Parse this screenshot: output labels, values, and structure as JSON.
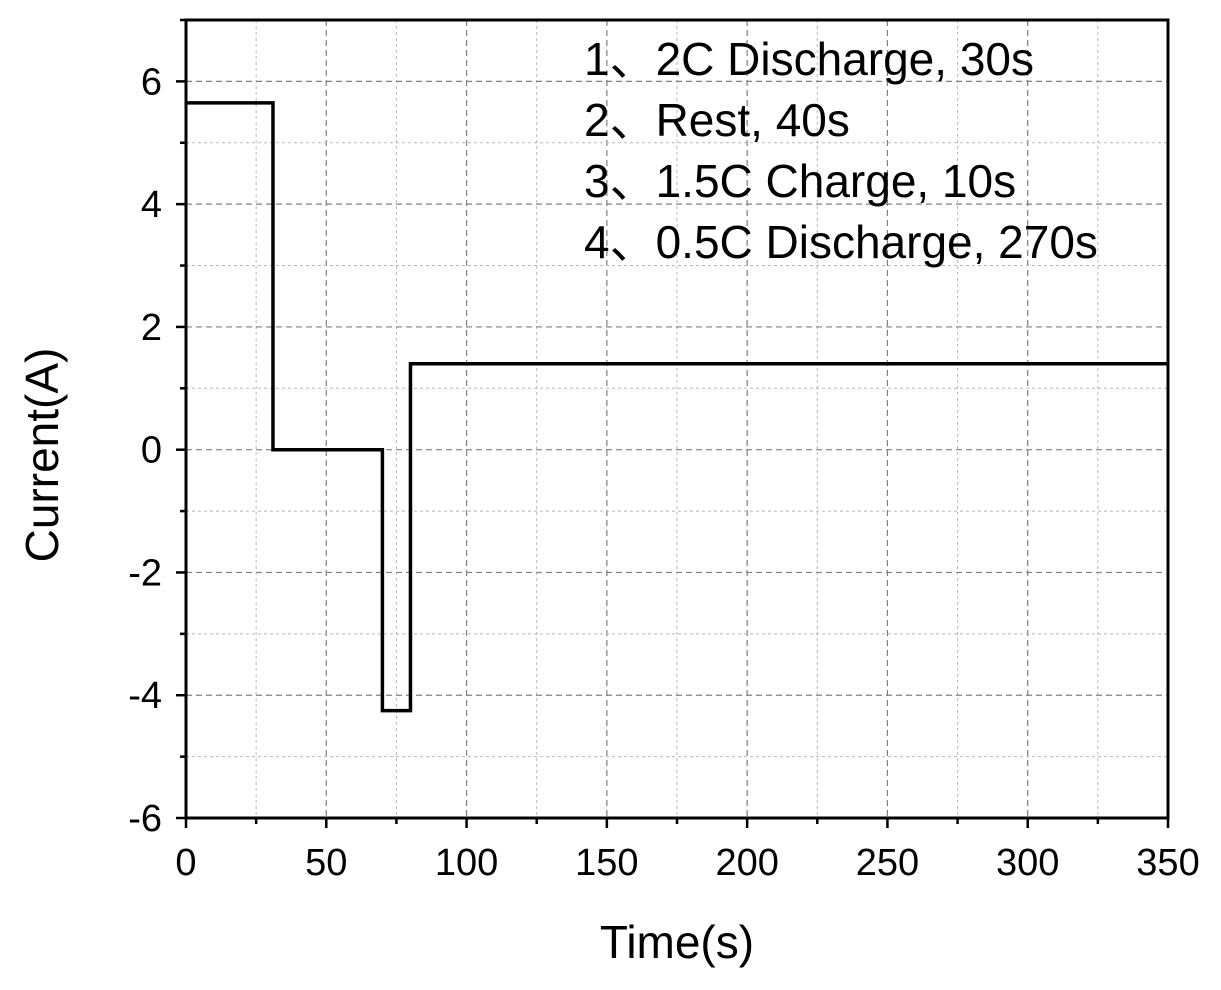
{
  "chart_data": {
    "type": "line",
    "xlabel": "Time(s)",
    "ylabel": "Current(A)",
    "xlim": [
      0,
      350
    ],
    "ylim": [
      -6,
      7
    ],
    "x_ticks": [
      0,
      50,
      100,
      150,
      200,
      250,
      300,
      350
    ],
    "y_ticks": [
      -6,
      -4,
      -2,
      0,
      2,
      4,
      6
    ],
    "x_tick_labels": [
      "0",
      "50",
      "100",
      "150",
      "200",
      "250",
      "300",
      "350"
    ],
    "y_tick_labels": [
      "-6",
      "-4",
      "-2",
      "0",
      "2",
      "4",
      "6"
    ],
    "grid": true,
    "legend_placement": "top-right",
    "annotations": [
      "1、2C Discharge, 30s",
      "2、Rest, 40s",
      "3、1.5C Charge, 10s",
      "4、0.5C Discharge, 270s"
    ],
    "series": [
      {
        "color": "#000000",
        "x": [
          0,
          31,
          31,
          70,
          70,
          80,
          80,
          350
        ],
        "y": [
          5.65,
          5.65,
          0,
          0,
          -4.25,
          -4.25,
          1.4,
          1.4
        ]
      }
    ]
  }
}
